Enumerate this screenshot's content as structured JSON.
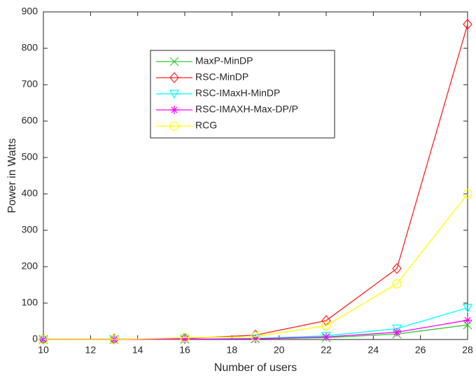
{
  "chart_data": {
    "type": "line",
    "xlabel": "Number of users",
    "ylabel": "Power in Watts",
    "x": [
      10,
      13,
      16,
      19,
      22,
      25,
      28
    ],
    "xlim": [
      10,
      28
    ],
    "xticks": [
      10,
      12,
      14,
      16,
      18,
      20,
      22,
      24,
      26,
      28
    ],
    "ylim": [
      0,
      900
    ],
    "yticks": [
      0,
      100,
      200,
      300,
      400,
      500,
      600,
      700,
      800,
      900
    ],
    "series": [
      {
        "name": "MaxP-MinDP",
        "color": "#33cc33",
        "marker": "x",
        "values": [
          0,
          0,
          1,
          2,
          5,
          15,
          40
        ]
      },
      {
        "name": "RSC-MinDP",
        "color": "#ff2020",
        "marker": "diamond",
        "values": [
          1,
          1,
          3,
          12,
          52,
          195,
          866
        ]
      },
      {
        "name": "RSC-IMaxH-MinDP",
        "color": "#00ffff",
        "marker": "triangle-down",
        "values": [
          0,
          0,
          1,
          3,
          10,
          30,
          87
        ]
      },
      {
        "name": "RSC-IMAXH-Max-DP/P",
        "color": "#ff00ff",
        "marker": "star",
        "values": [
          0,
          0,
          1,
          2,
          7,
          20,
          53
        ]
      },
      {
        "name": "RCG",
        "color": "#ffff00",
        "marker": "circle",
        "values": [
          0,
          0,
          5,
          8,
          38,
          153,
          400
        ]
      }
    ]
  }
}
